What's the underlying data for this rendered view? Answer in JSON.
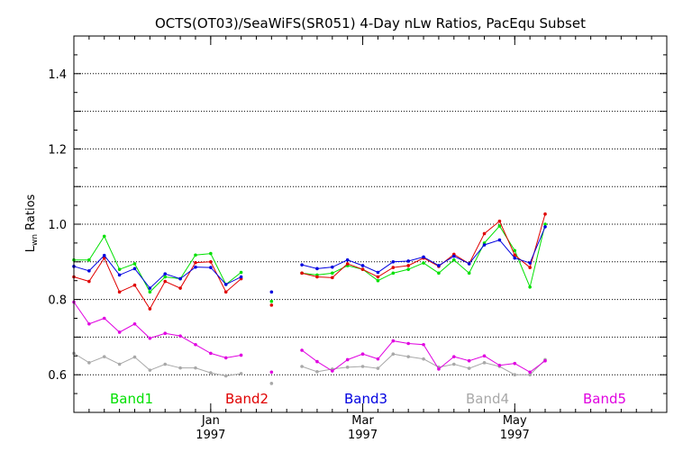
{
  "chart_data": {
    "type": "line",
    "title": "OCTS(OT03)/SeaWiFS(SR051) 4-Day nLw Ratios, PacEqu Subset",
    "ylabel_main": "L",
    "ylabel_sub": "wn",
    "ylabel_rest": " Ratios",
    "xlabel": "",
    "ylim": [
      0.5,
      1.5
    ],
    "xlim": [
      0,
      39
    ],
    "y_ticks": [
      "0.6",
      "0.8",
      "1.0",
      "1.2",
      "1.4"
    ],
    "y_grid": [
      0.6,
      0.7,
      0.8,
      0.9,
      1.0,
      1.1,
      1.2,
      1.3,
      1.4
    ],
    "x_ticks": [
      {
        "x": 9,
        "month": "Jan",
        "year": "1997"
      },
      {
        "x": 19,
        "month": "Mar",
        "year": "1997"
      },
      {
        "x": 29,
        "month": "May",
        "year": "1997"
      }
    ],
    "x": [
      0,
      1,
      2,
      3,
      4,
      5,
      6,
      7,
      8,
      9,
      10,
      11,
      12,
      13,
      14,
      15,
      16,
      17,
      18,
      19,
      20,
      21,
      22,
      23,
      24,
      25,
      26,
      27,
      28,
      29,
      30,
      31,
      32,
      33,
      34,
      35,
      36,
      37,
      38,
      39
    ],
    "series": [
      {
        "name": "Band1",
        "color": "#00e000",
        "values": [
          0.905,
          0.905,
          0.968,
          0.88,
          0.895,
          0.82,
          0.86,
          0.855,
          0.918,
          0.922,
          0.84,
          0.872,
          null,
          0.795,
          null,
          0.87,
          0.865,
          0.87,
          0.89,
          0.88,
          0.85,
          0.87,
          0.88,
          0.897,
          0.87,
          0.905,
          0.87,
          0.95,
          0.995,
          0.93,
          0.833,
          1.0,
          null,
          null,
          null,
          null,
          null,
          null,
          null,
          null
        ]
      },
      {
        "name": "Band2",
        "color": "#e00000",
        "values": [
          0.86,
          0.848,
          0.91,
          0.82,
          0.838,
          0.775,
          0.848,
          0.83,
          0.898,
          0.9,
          0.82,
          0.855,
          null,
          0.785,
          null,
          0.87,
          0.86,
          0.858,
          0.895,
          0.88,
          0.86,
          0.885,
          0.89,
          0.91,
          0.888,
          0.92,
          0.895,
          0.975,
          1.008,
          0.918,
          0.885,
          1.027,
          null,
          null,
          null,
          null,
          null,
          null,
          null,
          null
        ]
      },
      {
        "name": "Band3",
        "color": "#0000e0",
        "values": [
          0.888,
          0.876,
          0.917,
          0.865,
          0.882,
          0.83,
          0.868,
          0.855,
          0.886,
          0.885,
          0.84,
          0.86,
          null,
          0.82,
          null,
          0.892,
          0.882,
          0.886,
          0.905,
          0.89,
          0.872,
          0.9,
          0.902,
          0.913,
          0.89,
          0.915,
          0.895,
          0.945,
          0.958,
          0.91,
          0.897,
          0.993,
          null,
          null,
          null,
          null,
          null,
          null,
          null,
          null
        ]
      },
      {
        "name": "Band4",
        "color": "#a8a8a8",
        "values": [
          0.657,
          0.632,
          0.648,
          0.628,
          0.647,
          0.612,
          0.628,
          0.618,
          0.618,
          0.605,
          0.597,
          0.603,
          null,
          0.577,
          null,
          0.622,
          0.608,
          0.615,
          0.62,
          0.622,
          0.617,
          0.655,
          0.648,
          0.642,
          0.62,
          0.628,
          0.617,
          0.632,
          0.622,
          0.6,
          0.6,
          0.64,
          null,
          null,
          null,
          null,
          null,
          null,
          null,
          null
        ]
      },
      {
        "name": "Band5",
        "color": "#e000e0",
        "values": [
          0.793,
          0.735,
          0.75,
          0.713,
          0.735,
          0.697,
          0.71,
          0.703,
          0.68,
          0.657,
          0.645,
          0.652,
          null,
          0.607,
          null,
          0.665,
          0.635,
          0.61,
          0.64,
          0.655,
          0.642,
          0.69,
          0.683,
          0.68,
          0.615,
          0.648,
          0.637,
          0.65,
          0.625,
          0.63,
          0.607,
          0.637,
          null,
          null,
          null,
          null,
          null,
          null,
          null,
          null
        ]
      }
    ]
  }
}
